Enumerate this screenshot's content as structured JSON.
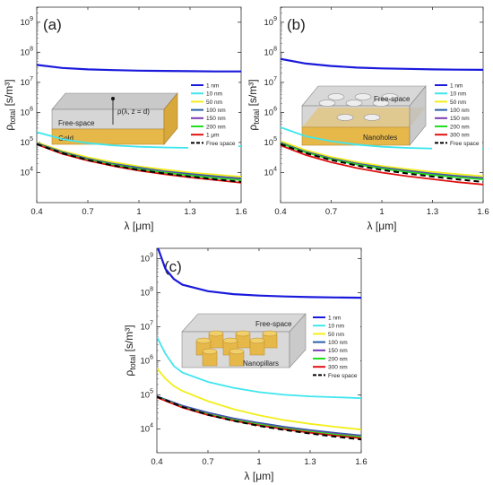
{
  "chart_data": [
    {
      "panel": "(a)",
      "type": "line",
      "xlabel": "λ [μm]",
      "ylabel": "ρ_total [s/m³]",
      "xlim": [
        0.4,
        1.6
      ],
      "ylim_log10": [
        3,
        9.5
      ],
      "yscale": "log",
      "xticks": [
        "0.4",
        "0.7",
        "1",
        "1.3",
        "1.6"
      ],
      "yticks": [
        "10^4",
        "10^5",
        "10^6",
        "10^7",
        "10^8",
        "10^9"
      ],
      "inset_labels": [
        "ρ(λ, z = d)",
        "Free-space",
        "Gold"
      ],
      "series": [
        {
          "name": "1 nm",
          "color": "#1a1adc",
          "dashed": false,
          "x": [
            0.4,
            0.55,
            0.7,
            0.85,
            1.0,
            1.15,
            1.3,
            1.45,
            1.6
          ],
          "y": [
            38000000.0,
            30000000.0,
            27000000.0,
            25500000.0,
            24500000.0,
            24000000.0,
            23500000.0,
            23000000.0,
            23000000.0
          ]
        },
        {
          "name": "10 nm",
          "color": "#3ee6ee",
          "dashed": false,
          "x": [
            0.4,
            0.55,
            0.7,
            0.85,
            1.0,
            1.15,
            1.3,
            1.45,
            1.6
          ],
          "y": [
            220000.0,
            130000.0,
            95000.0,
            80000.0,
            72000.0,
            68000.0,
            66000.0,
            68000.0,
            75000.0
          ]
        },
        {
          "name": "50 nm",
          "color": "#f2ee1a",
          "dashed": false,
          "x": [
            0.4,
            0.55,
            0.7,
            0.85,
            1.0,
            1.15,
            1.3,
            1.45,
            1.6
          ],
          "y": [
            100000.0,
            52000.0,
            32000.0,
            22000.0,
            16000.0,
            12500.0,
            10000.0,
            8500.0,
            7200.0
          ]
        },
        {
          "name": "100 nm",
          "color": "#2a5fa8",
          "dashed": false,
          "x": [
            0.4,
            0.55,
            0.7,
            0.85,
            1.0,
            1.15,
            1.3,
            1.45,
            1.6
          ],
          "y": [
            95000.0,
            48000.0,
            29000.0,
            19500.0,
            14500.0,
            11000.0,
            9000.0,
            7500.0,
            6400.0
          ]
        },
        {
          "name": "150 nm",
          "color": "#7a3bb0",
          "dashed": false,
          "x": [
            0.4,
            0.55,
            0.7,
            0.85,
            1.0,
            1.15,
            1.3,
            1.45,
            1.6
          ],
          "y": [
            92000.0,
            46000.0,
            28000.0,
            18500.0,
            13500.0,
            10500.0,
            8400.0,
            7000.0,
            6000.0
          ]
        },
        {
          "name": "200 nm",
          "color": "#22dd22",
          "dashed": false,
          "x": [
            0.4,
            0.55,
            0.7,
            0.85,
            1.0,
            1.15,
            1.3,
            1.45,
            1.6
          ],
          "y": [
            90000.0,
            45000.0,
            27000.0,
            18000.0,
            13000.0,
            10000.0,
            8000.0,
            6600.0,
            5600.0
          ]
        },
        {
          "name": "1 μm",
          "color": "#e01010",
          "dashed": false,
          "x": [
            0.4,
            0.55,
            0.7,
            0.85,
            1.0,
            1.15,
            1.3,
            1.45,
            1.6
          ],
          "y": [
            86000.0,
            42000.0,
            25000.0,
            16500.0,
            11500.0,
            8800.0,
            6900.0,
            5600.0,
            4600.0
          ]
        },
        {
          "name": "Free space",
          "color": "#000000",
          "dashed": true,
          "x": [
            0.4,
            0.55,
            0.7,
            0.85,
            1.0,
            1.15,
            1.3,
            1.45,
            1.6
          ],
          "y": [
            88000.0,
            44000.0,
            26000.0,
            17200.0,
            12200.0,
            9300.0,
            7300.0,
            5900.0,
            4900.0
          ]
        }
      ]
    },
    {
      "panel": "(b)",
      "type": "line",
      "xlabel": "λ [μm]",
      "ylabel": "ρ_total [s/m³]",
      "xlim": [
        0.4,
        1.6
      ],
      "ylim_log10": [
        3,
        9.5
      ],
      "yscale": "log",
      "xticks": [
        "0.4",
        "0.7",
        "1",
        "1.3",
        "1.6"
      ],
      "yticks": [
        "10^4",
        "10^5",
        "10^6",
        "10^7",
        "10^8",
        "10^9"
      ],
      "inset_labels": [
        "Free-space",
        "Nanoholes"
      ],
      "series": [
        {
          "name": "1 nm",
          "color": "#1a1adc",
          "dashed": false,
          "x": [
            0.4,
            0.55,
            0.7,
            0.85,
            1.0,
            1.15,
            1.3,
            1.45,
            1.6
          ],
          "y": [
            60000000.0,
            42000000.0,
            35000000.0,
            31000000.0,
            29000000.0,
            28000000.0,
            27000000.0,
            26500000.0,
            26000000.0
          ]
        },
        {
          "name": "10 nm",
          "color": "#3ee6ee",
          "dashed": false,
          "x": [
            0.4,
            0.55,
            0.7,
            0.85,
            1.0,
            1.15,
            1.3,
            1.45,
            1.6
          ],
          "y": [
            320000.0,
            160000.0,
            110000.0,
            85000.0,
            72000.0,
            66000.0,
            63000.0,
            62000.0,
            62000.0
          ]
        },
        {
          "name": "50 nm",
          "color": "#f2ee1a",
          "dashed": false,
          "x": [
            0.4,
            0.55,
            0.7,
            0.85,
            1.0,
            1.15,
            1.3,
            1.45,
            1.6
          ],
          "y": [
            110000.0,
            55000.0,
            33000.0,
            22500.0,
            16500.0,
            13000.0,
            10500.0,
            8800.0,
            7600.0
          ]
        },
        {
          "name": "100 nm",
          "color": "#2a5fa8",
          "dashed": false,
          "x": [
            0.4,
            0.55,
            0.7,
            0.85,
            1.0,
            1.15,
            1.3,
            1.45,
            1.6
          ],
          "y": [
            98000.0,
            49000.0,
            29500.0,
            20000.0,
            14800.0,
            11500.0,
            9200.0,
            7700.0,
            6600.0
          ]
        },
        {
          "name": "150 nm",
          "color": "#7a3bb0",
          "dashed": false,
          "x": [
            0.4,
            0.55,
            0.7,
            0.85,
            1.0,
            1.15,
            1.3,
            1.45,
            1.6
          ],
          "y": [
            94000.0,
            47000.0,
            28500.0,
            19000.0,
            14000.0,
            10800.0,
            8700.0,
            7200.0,
            6200.0
          ]
        },
        {
          "name": "200 nm",
          "color": "#22dd22",
          "dashed": false,
          "x": [
            0.4,
            0.55,
            0.7,
            0.85,
            1.0,
            1.15,
            1.3,
            1.45,
            1.6
          ],
          "y": [
            92000.0,
            46000.0,
            27500.0,
            18500.0,
            13500.0,
            10400.0,
            8300.0,
            6900.0,
            5900.0
          ]
        },
        {
          "name": "300 nm",
          "color": "#e01010",
          "dashed": false,
          "x": [
            0.4,
            0.55,
            0.7,
            0.85,
            1.0,
            1.15,
            1.3,
            1.45,
            1.6
          ],
          "y": [
            80000.0,
            38000.0,
            22000.0,
            14200.0,
            10000.0,
            7600.0,
            6000.0,
            4800.0,
            4000.0
          ]
        },
        {
          "name": "Free space",
          "color": "#000000",
          "dashed": true,
          "x": [
            0.4,
            0.55,
            0.7,
            0.85,
            1.0,
            1.15,
            1.3,
            1.45,
            1.6
          ],
          "y": [
            88000.0,
            44000.0,
            26000.0,
            17200.0,
            12200.0,
            9300.0,
            7300.0,
            5900.0,
            4900.0
          ]
        }
      ]
    },
    {
      "panel": "(c)",
      "type": "line",
      "xlabel": "λ [μm]",
      "ylabel": "ρ_total [s/m³]",
      "xlim": [
        0.4,
        1.6
      ],
      "ylim_log10": [
        3.3,
        9.3
      ],
      "yscale": "log",
      "xticks": [
        "0.4",
        "0.7",
        "1",
        "1.3",
        "1.6"
      ],
      "yticks": [
        "10^4",
        "10^5",
        "10^6",
        "10^7",
        "10^8",
        "10^9"
      ],
      "inset_labels": [
        "Free-space",
        "Nanopillars"
      ],
      "series": [
        {
          "name": "1 nm",
          "color": "#1a1adc",
          "dashed": false,
          "x": [
            0.4,
            0.45,
            0.5,
            0.55,
            0.7,
            0.85,
            1.0,
            1.15,
            1.3,
            1.45,
            1.6
          ],
          "y": [
            2500000000.0,
            500000000.0,
            250000000.0,
            170000000.0,
            110000000.0,
            90000000.0,
            82000000.0,
            77000000.0,
            74000000.0,
            72000000.0,
            71000000.0
          ]
        },
        {
          "name": "10 nm",
          "color": "#3ee6ee",
          "dashed": false,
          "x": [
            0.4,
            0.45,
            0.5,
            0.55,
            0.7,
            0.85,
            1.0,
            1.15,
            1.3,
            1.45,
            1.6
          ],
          "y": [
            5000000.0,
            1600000.0,
            700000.0,
            450000.0,
            240000.0,
            160000.0,
            120000.0,
            100000.0,
            90000.0,
            85000.0,
            80000.0
          ]
        },
        {
          "name": "50 nm",
          "color": "#f2ee1a",
          "dashed": false,
          "x": [
            0.4,
            0.45,
            0.5,
            0.55,
            0.7,
            0.85,
            1.0,
            1.15,
            1.3,
            1.45,
            1.6
          ],
          "y": [
            600000.0,
            300000.0,
            180000.0,
            130000.0,
            65000.0,
            38000.0,
            25000.0,
            18000.0,
            14000.0,
            11500.0,
            9500.0
          ]
        },
        {
          "name": "100 nm",
          "color": "#2a5fa8",
          "dashed": false,
          "x": [
            0.4,
            0.55,
            0.7,
            0.85,
            1.0,
            1.15,
            1.3,
            1.45,
            1.6
          ],
          "y": [
            90000.0,
            48000.0,
            30000.0,
            20500.0,
            15000.0,
            11500.0,
            9200.0,
            7600.0,
            6400.0
          ]
        },
        {
          "name": "150 nm",
          "color": "#7a3bb0",
          "dashed": false,
          "x": [
            0.4,
            0.55,
            0.7,
            0.85,
            1.0,
            1.15,
            1.3,
            1.45,
            1.6
          ],
          "y": [
            88000.0,
            46000.0,
            28500.0,
            19500.0,
            14200.0,
            10800.0,
            8700.0,
            7200.0,
            6100.0
          ]
        },
        {
          "name": "200 nm",
          "color": "#22dd22",
          "dashed": false,
          "x": [
            0.4,
            0.55,
            0.7,
            0.85,
            1.0,
            1.15,
            1.3,
            1.45,
            1.6
          ],
          "y": [
            86000.0,
            44000.0,
            27000.0,
            18500.0,
            13500.0,
            10300.0,
            8300.0,
            6800.0,
            5800.0
          ]
        },
        {
          "name": "300 nm",
          "color": "#e01010",
          "dashed": false,
          "x": [
            0.4,
            0.55,
            0.7,
            0.85,
            1.0,
            1.15,
            1.3,
            1.45,
            1.6
          ],
          "y": [
            84000.0,
            42000.0,
            25500.0,
            17500.0,
            12700.0,
            9700.0,
            7700.0,
            6300.0,
            5300.0
          ]
        },
        {
          "name": "Free space",
          "color": "#000000",
          "dashed": true,
          "x": [
            0.4,
            0.55,
            0.7,
            0.85,
            1.0,
            1.15,
            1.3,
            1.45,
            1.6
          ],
          "y": [
            88000.0,
            44000.0,
            26000.0,
            17200.0,
            12200.0,
            9300.0,
            7300.0,
            5900.0,
            4900.0
          ]
        }
      ]
    }
  ]
}
